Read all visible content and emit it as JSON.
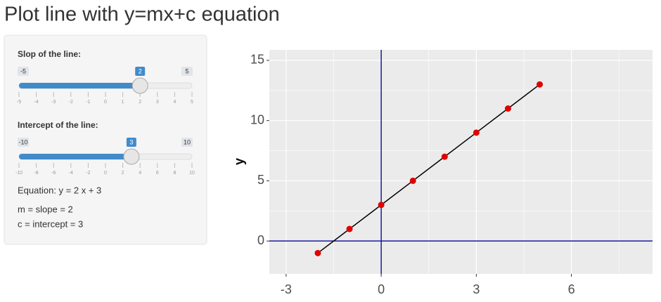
{
  "title": "Plot line with y=mx+c equation",
  "sidebar": {
    "sliders": [
      {
        "label": "Slop of the line:",
        "min": -5,
        "max": 5,
        "value": 2,
        "ticks": [
          -5,
          -4,
          -3,
          -2,
          -1,
          0,
          1,
          2,
          3,
          4,
          5
        ]
      },
      {
        "label": "Intercept of the line:",
        "min": -10,
        "max": 10,
        "value": 3,
        "ticks": [
          -10,
          -8,
          -6,
          -4,
          -2,
          0,
          2,
          4,
          6,
          8,
          10
        ]
      }
    ],
    "lines": [
      "Equation: y = 2 x + 3",
      "m = slope = 2",
      "c = intercept = 3"
    ]
  },
  "chart_data": {
    "type": "line",
    "y_label": "y",
    "x": [
      -2,
      -1,
      0,
      1,
      2,
      3,
      4,
      5
    ],
    "values": [
      -1,
      1,
      3,
      5,
      7,
      9,
      11,
      13
    ],
    "line_color": "#000000",
    "marker_color": "#e00000",
    "xlim": [
      -3.53,
      8.56
    ],
    "ylim": [
      -2.73,
      15.87
    ],
    "xticks": [
      -3,
      0,
      3,
      6
    ],
    "yticks": [
      0,
      5,
      10,
      15
    ],
    "minor_xgrid": [
      -1.5,
      1.5,
      4.5,
      7.5
    ],
    "minor_ygrid": [
      2.5,
      7.5,
      12.5
    ],
    "grid": true,
    "vline": 0,
    "hline": 0,
    "ref_color": "#1a1a9c"
  }
}
